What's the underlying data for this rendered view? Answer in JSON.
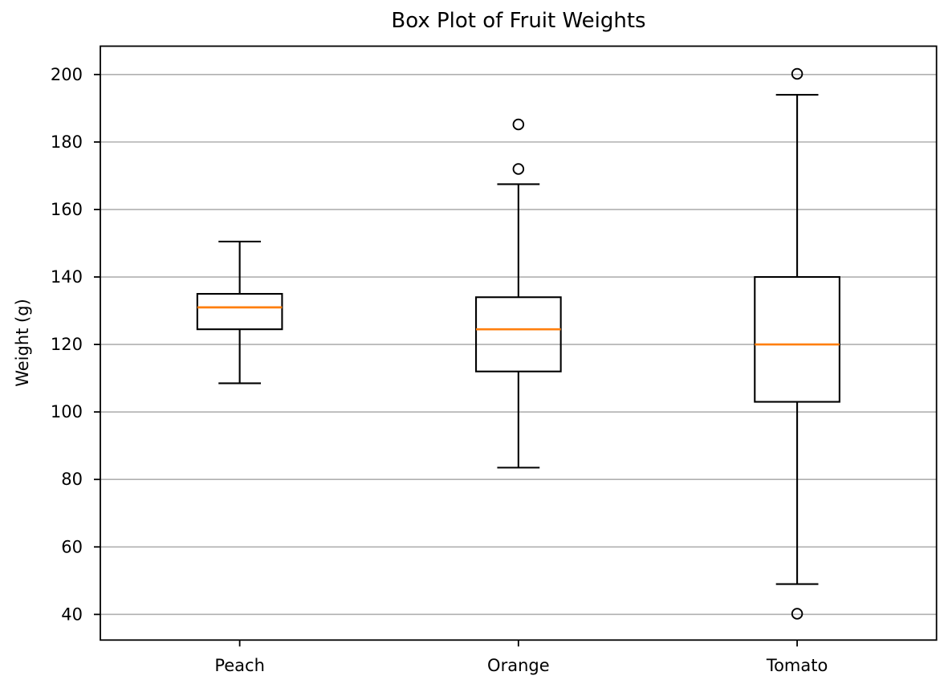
{
  "figure": {
    "title": "Box Plot of Fruit Weights"
  },
  "chart_data": {
    "type": "boxplot",
    "title": "Box Plot of Fruit Weights",
    "xlabel": "",
    "ylabel": "Weight (g)",
    "categories": [
      "Peach",
      "Orange",
      "Tomato"
    ],
    "yticks": [
      40,
      60,
      80,
      100,
      120,
      140,
      160,
      180,
      200
    ],
    "ylim": [
      32.4,
      208.4
    ],
    "grid": true,
    "legend": false,
    "boxes": [
      {
        "label": "Peach",
        "whisker_low": 108.5,
        "q1": 124.5,
        "median": 131,
        "q3": 135,
        "whisker_high": 150.5,
        "outliers": []
      },
      {
        "label": "Orange",
        "whisker_low": 83.5,
        "q1": 112,
        "median": 124.5,
        "q3": 134,
        "whisker_high": 167.5,
        "outliers": [
          172,
          185.2
        ]
      },
      {
        "label": "Tomato",
        "whisker_low": 49,
        "q1": 103,
        "median": 120,
        "q3": 140,
        "whisker_high": 194,
        "outliers": [
          40.2,
          200.2
        ]
      }
    ],
    "colors": {
      "box": "#000000",
      "median": "#ff7f0e",
      "whisker": "#000000",
      "outlier": "#000000",
      "grid": "#b0b0b0",
      "spine": "#000000",
      "text": "#000000",
      "background": "#ffffff"
    }
  }
}
